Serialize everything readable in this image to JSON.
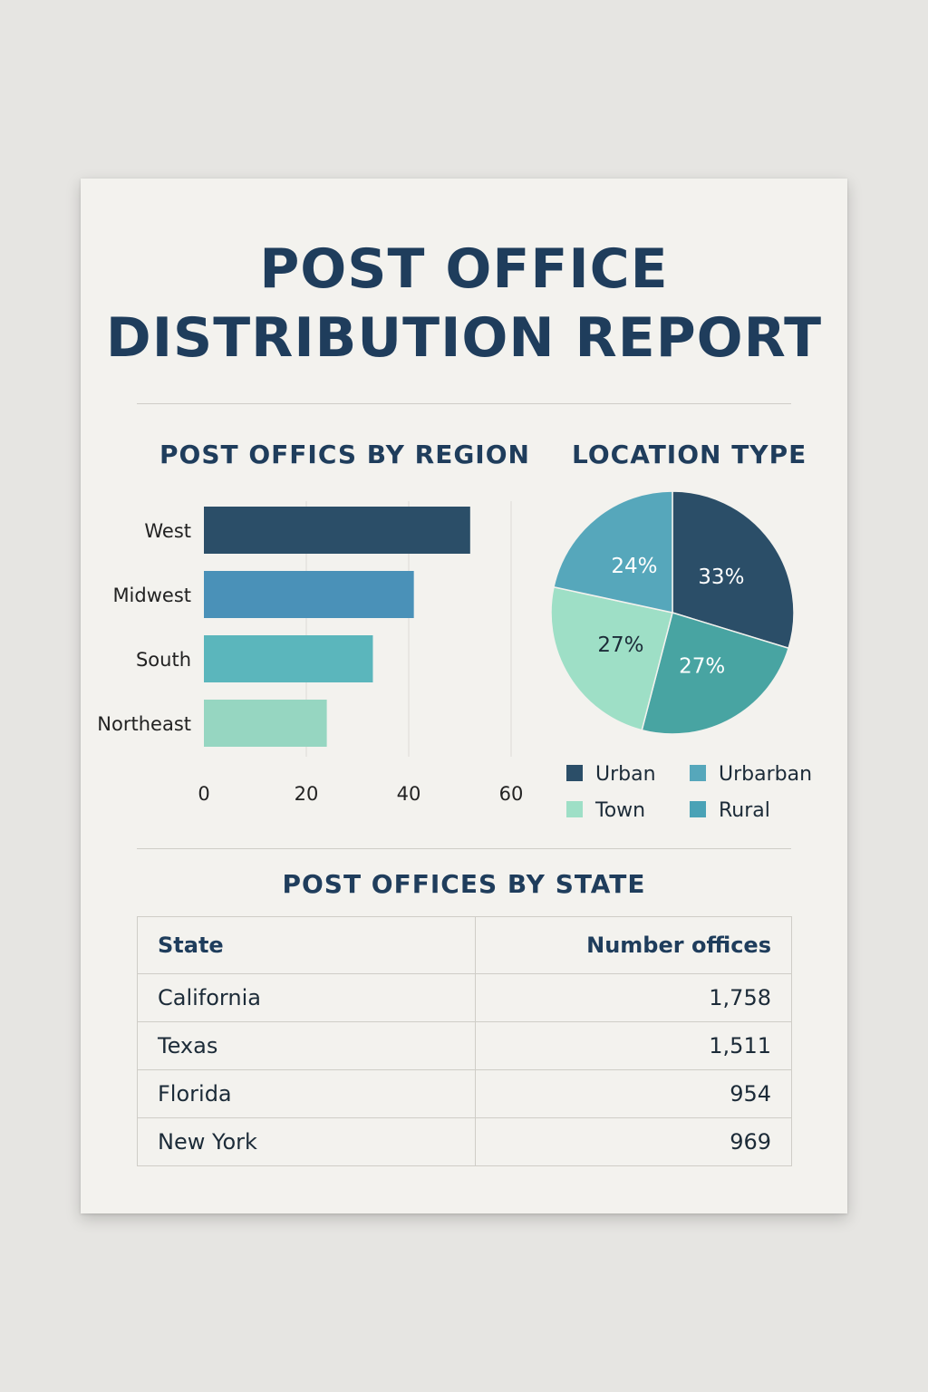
{
  "report": {
    "title_lines": [
      "POST OFFICE",
      "DISTRIBUTION REPORT"
    ]
  },
  "chart_data": [
    {
      "type": "bar",
      "orientation": "horizontal",
      "title": "POST OFFICS BY REGION",
      "categories": [
        "West",
        "Midwest",
        "South",
        "Northeast"
      ],
      "values": [
        52,
        41,
        33,
        24
      ],
      "colors": [
        "#2b4e68",
        "#4a91b8",
        "#5bb6bc",
        "#96d6c1"
      ],
      "xlim": [
        0,
        60
      ],
      "x_ticks": [
        0,
        20,
        40,
        60
      ],
      "grid": true
    },
    {
      "type": "pie",
      "title": "LOCATION TYPE",
      "slices": [
        {
          "label": "Urban",
          "value": 33,
          "display": "33%",
          "color": "#2b4e68"
        },
        {
          "label": "Rural",
          "value": 27,
          "display": "27%",
          "color": "#48a4a2"
        },
        {
          "label": "Town",
          "value": 27,
          "display": "27%",
          "color": "#9edfc6"
        },
        {
          "label": "Urbarban",
          "value": 24,
          "display": "24%",
          "color": "#56a7bb"
        }
      ],
      "legend": [
        {
          "label": "Urban",
          "color": "#2b4e68"
        },
        {
          "label": "Urbarban",
          "color": "#56a7bb"
        },
        {
          "label": "Town",
          "color": "#9edfc6"
        },
        {
          "label": "Rural",
          "color": "#4aa2b6"
        }
      ],
      "legend_position": "bottom"
    },
    {
      "type": "table",
      "title": "POST OFFICES BY STATE",
      "columns": [
        "State",
        "Number offices"
      ],
      "rows": [
        [
          "California",
          "1,758"
        ],
        [
          "Texas",
          "1,511"
        ],
        [
          "Florida",
          "954"
        ],
        [
          "New York",
          "969"
        ]
      ]
    }
  ]
}
